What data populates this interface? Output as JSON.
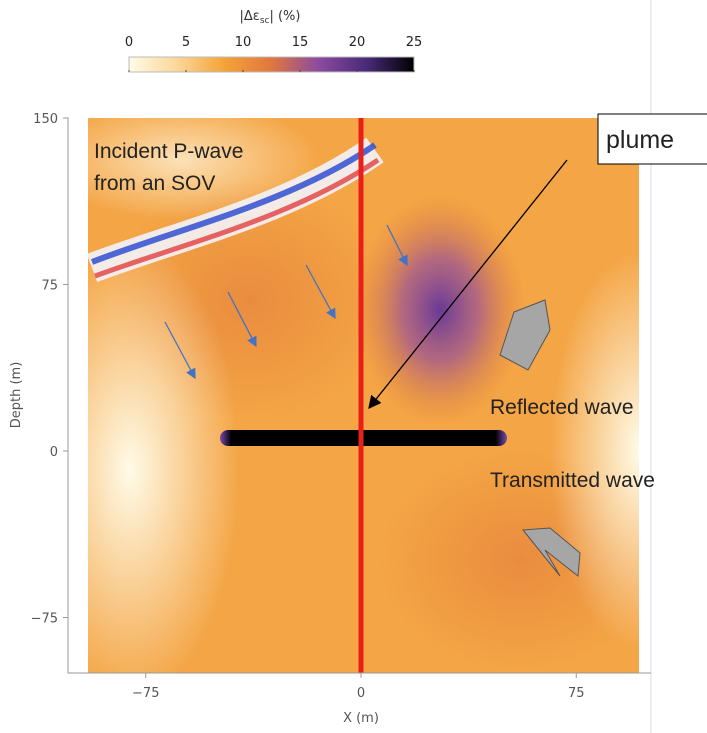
{
  "chart_data": {
    "type": "heatmap",
    "colorbar_label": [
      "|Δε",
      "sc",
      "| (%)"
    ],
    "clim": [
      0,
      25
    ],
    "cticks": [
      0,
      5,
      10,
      15,
      20,
      25
    ],
    "colormap": [
      "#fffbe8",
      "#fbd79a",
      "#f5a338",
      "#e0773e",
      "#8a4aa0",
      "#4a2a78",
      "#000000"
    ],
    "xlabel": "X (m)",
    "ylabel": "Depth (m)",
    "xlim": [
      -100,
      100
    ],
    "xticks": [
      {
        "value": -75,
        "label": "−75"
      },
      0,
      75
    ],
    "ylim": [
      -100,
      150
    ],
    "yticks": [
      {
        "value": -75,
        "label": "−75"
      },
      0,
      75,
      150
    ],
    "annotations": [
      "Incident P-wave",
      "from an SOV",
      "plume",
      "Reflected wave",
      "Transmitted wave"
    ]
  }
}
